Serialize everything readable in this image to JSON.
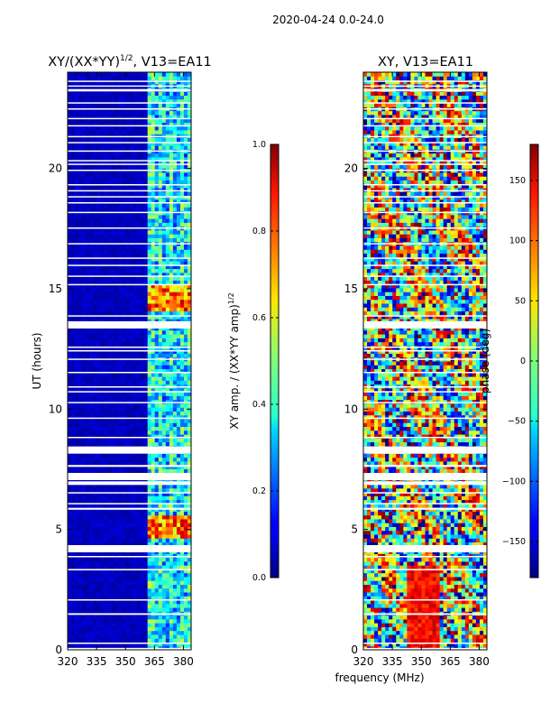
{
  "figure": {
    "suptitle": "2020-04-24 0.0-24.0",
    "shared_xlabel": "frequency (MHz)"
  },
  "chart_data": [
    {
      "type": "heatmap",
      "title": "XY/(XX*YY)",
      "title_exponent": "1/2",
      "title_suffix": ", V13=EA11",
      "xlabel": "",
      "ylabel": "UT (hours)",
      "xlim": [
        320,
        384
      ],
      "ylim": [
        0,
        24
      ],
      "xticks": [
        320,
        335,
        350,
        365,
        380
      ],
      "yticks": [
        0,
        5,
        10,
        15,
        20
      ],
      "colorbar": {
        "label": "XY amp. / (XX*YY amp)",
        "label_exponent": "1/2",
        "range": [
          0.0,
          1.0
        ],
        "ticks": [
          "0.0",
          "0.2",
          "0.4",
          "0.6",
          "0.8",
          "1.0"
        ],
        "colormap": "jet"
      },
      "description": "normalized cross-hand amplitude; mostly near 0 below 362 MHz, elevated 362-382 MHz with peaks ~0.9 near UT 4.5-5.5 and 14-15",
      "flagged_hours": [
        [
          0.0,
          0.08
        ],
        [
          0.25,
          0.3
        ],
        [
          1.45,
          1.52
        ],
        [
          2.05,
          2.1
        ],
        [
          3.3,
          3.36
        ],
        [
          3.85,
          3.9
        ],
        [
          4.05,
          4.35
        ],
        [
          5.82,
          5.9
        ],
        [
          6.05,
          6.1
        ],
        [
          6.5,
          6.55
        ],
        [
          6.85,
          7.0
        ],
        [
          7.05,
          7.35
        ],
        [
          7.6,
          7.68
        ],
        [
          8.15,
          8.45
        ],
        [
          8.8,
          8.85
        ],
        [
          9.6,
          9.65
        ],
        [
          10.25,
          10.3
        ],
        [
          10.7,
          10.75
        ],
        [
          10.9,
          10.95
        ],
        [
          11.5,
          11.55
        ],
        [
          12.05,
          12.1
        ],
        [
          12.4,
          12.45
        ],
        [
          12.55,
          12.6
        ],
        [
          13.35,
          13.65
        ],
        [
          13.85,
          13.9
        ],
        [
          15.15,
          15.2
        ],
        [
          15.5,
          15.55
        ],
        [
          15.95,
          16.0
        ],
        [
          16.25,
          16.3
        ],
        [
          16.85,
          16.9
        ],
        [
          17.5,
          17.55
        ],
        [
          18.15,
          18.2
        ],
        [
          18.55,
          18.6
        ],
        [
          18.8,
          18.85
        ],
        [
          19.05,
          19.1
        ],
        [
          19.3,
          19.35
        ],
        [
          19.9,
          19.95
        ],
        [
          20.15,
          20.2
        ],
        [
          20.3,
          20.35
        ],
        [
          20.7,
          20.75
        ],
        [
          21.05,
          21.1
        ],
        [
          21.3,
          21.35
        ],
        [
          21.75,
          21.8
        ],
        [
          22.05,
          22.1
        ],
        [
          22.45,
          22.5
        ],
        [
          22.7,
          22.75
        ],
        [
          23.2,
          23.3
        ],
        [
          23.4,
          23.45
        ],
        [
          23.6,
          23.65
        ]
      ]
    },
    {
      "type": "heatmap",
      "title": "XY, V13=EA11",
      "xlabel": "",
      "ylabel": "",
      "xlim": [
        320,
        384
      ],
      "ylim": [
        0,
        24
      ],
      "xticks": [
        320,
        335,
        350,
        365,
        380
      ],
      "yticks": [
        0,
        5,
        10,
        15,
        20
      ],
      "colorbar": {
        "label": "phase (deg)",
        "range": [
          -180,
          180
        ],
        "ticks": [
          "−150",
          "−100",
          "−50",
          "0",
          "50",
          "100",
          "150"
        ],
        "colormap": "jet"
      },
      "description": "cross-hand phase, noisy full-range speckle with coherent banded structure",
      "flagged_hours": [
        [
          0.0,
          0.08
        ],
        [
          0.25,
          0.3
        ],
        [
          1.45,
          1.52
        ],
        [
          2.05,
          2.1
        ],
        [
          3.3,
          3.36
        ],
        [
          3.85,
          3.9
        ],
        [
          4.05,
          4.35
        ],
        [
          5.82,
          5.9
        ],
        [
          6.05,
          6.1
        ],
        [
          6.5,
          6.55
        ],
        [
          6.85,
          7.0
        ],
        [
          7.05,
          7.35
        ],
        [
          7.6,
          7.68
        ],
        [
          8.15,
          8.45
        ],
        [
          8.8,
          8.85
        ],
        [
          9.6,
          9.65
        ],
        [
          10.25,
          10.3
        ],
        [
          10.7,
          10.75
        ],
        [
          10.9,
          10.95
        ],
        [
          11.5,
          11.55
        ],
        [
          12.05,
          12.1
        ],
        [
          12.4,
          12.45
        ],
        [
          12.55,
          12.6
        ],
        [
          13.35,
          13.65
        ],
        [
          13.85,
          13.9
        ],
        [
          15.15,
          15.2
        ],
        [
          15.5,
          15.55
        ],
        [
          15.95,
          16.0
        ],
        [
          16.25,
          16.3
        ],
        [
          16.85,
          16.9
        ],
        [
          17.5,
          17.55
        ],
        [
          18.15,
          18.2
        ],
        [
          18.55,
          18.6
        ],
        [
          18.8,
          18.85
        ],
        [
          19.05,
          19.1
        ],
        [
          19.3,
          19.35
        ],
        [
          19.9,
          19.95
        ],
        [
          20.15,
          20.2
        ],
        [
          20.3,
          20.35
        ],
        [
          20.7,
          20.75
        ],
        [
          21.05,
          21.1
        ],
        [
          21.3,
          21.35
        ],
        [
          21.75,
          21.8
        ],
        [
          22.05,
          22.1
        ],
        [
          22.45,
          22.5
        ],
        [
          22.7,
          22.75
        ],
        [
          23.2,
          23.3
        ],
        [
          23.4,
          23.45
        ],
        [
          23.6,
          23.65
        ]
      ]
    }
  ]
}
